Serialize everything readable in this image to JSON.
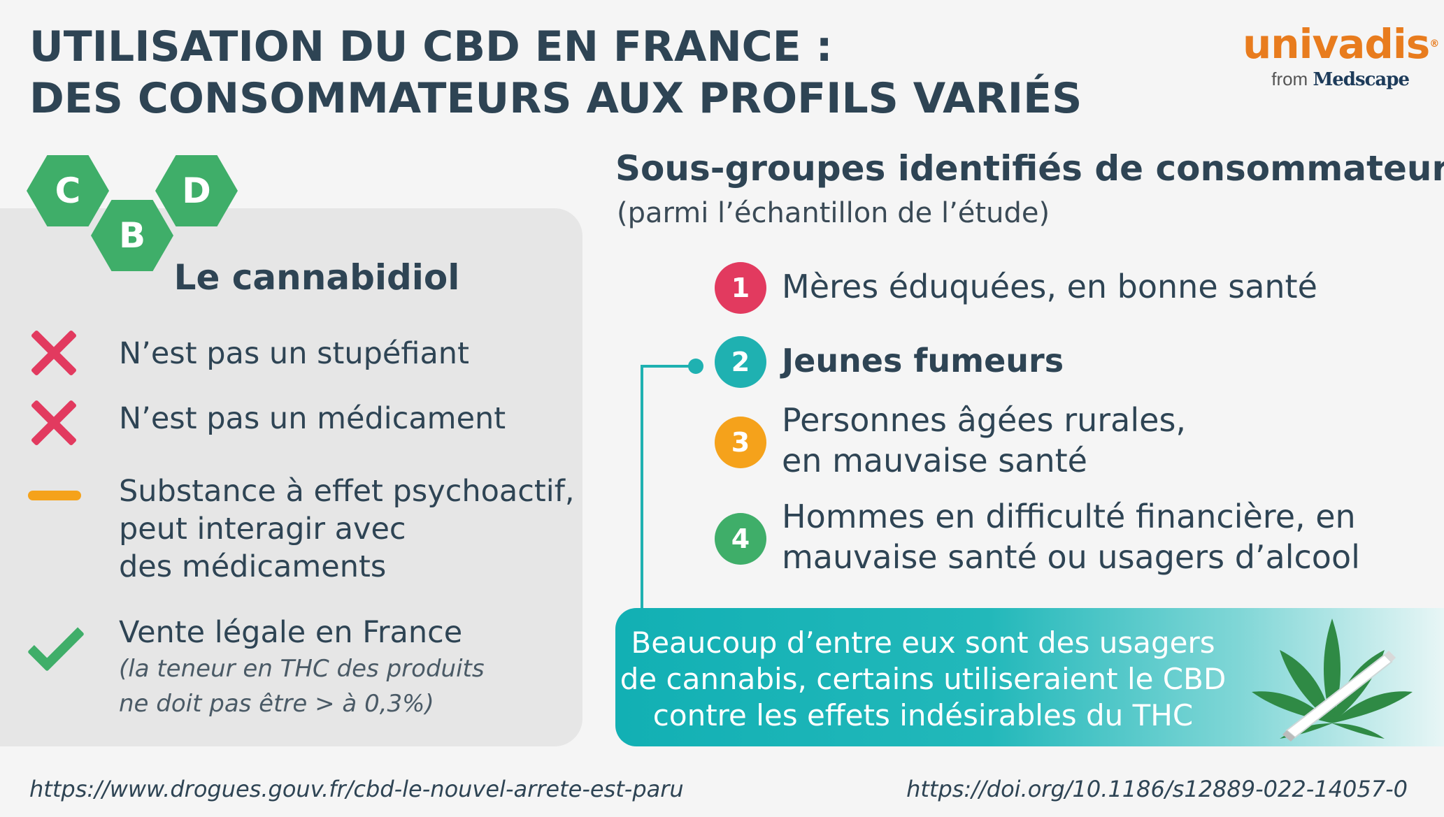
{
  "title": {
    "line1": "UTILISATION DU CBD EN FRANCE :",
    "line2": "DES CONSOMMATEURS AUX PROFILS VARIÉS"
  },
  "brand": {
    "name": "univadis",
    "registered": "®",
    "from": "from",
    "partner": "Medscape"
  },
  "hexagons": [
    "C",
    "B",
    "D"
  ],
  "left": {
    "heading": "Le cannabidiol",
    "items": [
      {
        "icon": "cross-icon",
        "text": "N’est pas un stupéfiant"
      },
      {
        "icon": "cross-icon",
        "text": "N’est pas un médicament"
      },
      {
        "icon": "dash-icon",
        "lines": [
          "Substance à effet psychoactif,",
          "peut interagir avec",
          "des médicaments"
        ]
      },
      {
        "icon": "check-icon",
        "text": "Vente légale en France",
        "notes": [
          "(la teneur en THC des produits",
          "ne doit pas être > à 0,3%)"
        ]
      }
    ]
  },
  "right": {
    "heading": "Sous-groupes identifiés de consommateurs",
    "subheading": "(parmi l’échantillon de l’étude)",
    "groups": [
      {
        "num": "1",
        "lines": [
          "Mères éduquées, en bonne santé"
        ],
        "color": "#e23a5f"
      },
      {
        "num": "2",
        "lines": [
          "Jeunes fumeurs"
        ],
        "color": "#1fb1b1"
      },
      {
        "num": "3",
        "lines": [
          "Personnes âgées rurales,",
          "en mauvaise santé"
        ],
        "color": "#f5a21b"
      },
      {
        "num": "4",
        "lines": [
          "Hommes en difficulté financière, en",
          "mauvaise santé ou usagers d’alcool"
        ],
        "color": "#3fae69"
      }
    ],
    "callout": [
      "Beaucoup d’entre eux sont des usagers",
      "de cannabis, certains utiliseraient le CBD",
      "contre les effets indésirables du THC"
    ]
  },
  "footer": {
    "left_url": "https://www.drogues.gouv.fr/cbd-le-nouvel-arrete-est-paru",
    "right_url": "https://doi.org/10.1186/s12889-022-14057-0"
  },
  "colors": {
    "navy": "#2e4454",
    "pink": "#e23a5f",
    "teal": "#1fb1b1",
    "orange": "#f5a21b",
    "green": "#3fae69",
    "brand_orange": "#e87c1e"
  }
}
